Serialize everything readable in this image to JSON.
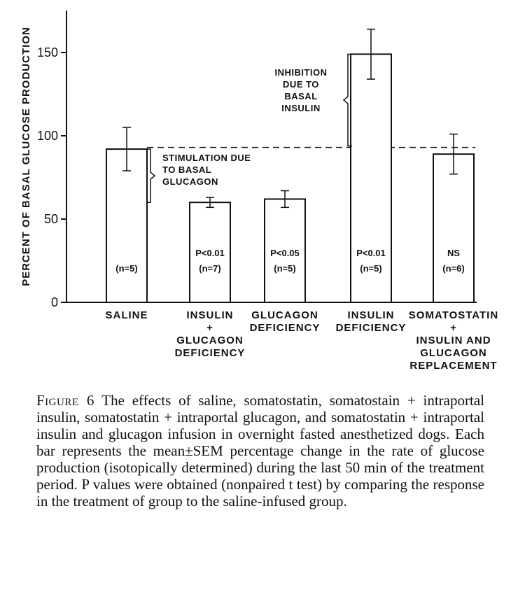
{
  "chart_data": {
    "type": "bar",
    "ylabel": "PERCENT OF BASAL GLUCOSE PRODUCTION",
    "ylim": [
      0,
      175
    ],
    "yticks": [
      0,
      50,
      100,
      150
    ],
    "categories": [
      [
        "SALINE"
      ],
      [
        "INSULIN",
        "+",
        "GLUCAGON",
        "DEFICIENCY"
      ],
      [
        "GLUCAGON",
        "DEFICIENCY"
      ],
      [
        "INSULIN",
        "DEFICIENCY"
      ],
      [
        "SOMATOSTATIN",
        "+",
        "INSULIN AND",
        "GLUCAGON",
        "REPLACEMENT"
      ]
    ],
    "values": [
      92,
      60,
      62,
      149,
      89
    ],
    "errors": [
      13,
      3,
      5,
      15,
      12
    ],
    "pvalues": [
      "",
      "P<0.01",
      "P<0.05",
      "P<0.01",
      "NS"
    ],
    "n_labels": [
      "(n=5)",
      "(n=7)",
      "(n=5)",
      "(n=5)",
      "(n=6)"
    ],
    "reference_line": 93,
    "annotations": [
      {
        "lines": [
          "STIMULATION DUE",
          "TO BASAL",
          "GLUCAGON"
        ]
      },
      {
        "lines": [
          "INHIBITION",
          "DUE TO",
          "BASAL",
          "INSULIN"
        ]
      }
    ],
    "grid": false,
    "legend": "none"
  },
  "caption": {
    "label": "Figure 6",
    "text": " The effects of saline, somatostatin, somatostain + intraportal insulin, somatostatin + intraportal glucagon, and somatostatin + intraportal insulin and glucagon infusion in overnight fasted anesthetized dogs. Each bar represents the mean±SEM percentage change in the rate of glucose production (isotopically determined) during the last 50 min of the treatment period. P values were obtained (nonpaired t test) by comparing the response in the treatment of group to the saline-infused group."
  }
}
